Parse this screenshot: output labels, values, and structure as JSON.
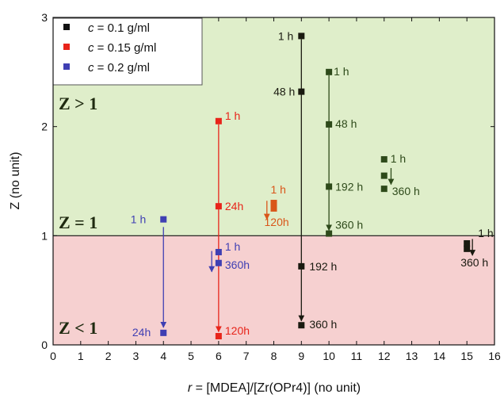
{
  "chart_data": {
    "type": "scatter",
    "xlabel": "r = [MDEA]/[Zr(OPr4)] (no unit)",
    "xlabel_italic": "r",
    "xlabel_rest": " = [MDEA]/[Zr(OPr4)] (no unit)",
    "ylabel": "Z (no unit)",
    "xlim": [
      0,
      16
    ],
    "ylim": [
      0,
      3
    ],
    "xticks": [
      "0",
      "1",
      "2",
      "3",
      "4",
      "5",
      "6",
      "7",
      "8",
      "9",
      "10",
      "11",
      "12",
      "13",
      "14",
      "15",
      "16"
    ],
    "yticks": [
      "0",
      "1",
      "2",
      "3"
    ],
    "threshold": 1.0,
    "regions": [
      {
        "label": "Z > 1",
        "color": "#dfeeca"
      },
      {
        "label": "Z = 1",
        "color": ""
      },
      {
        "label": "Z < 1",
        "color": "#f6d0d0"
      }
    ],
    "legend": [
      {
        "prefix": "c",
        "text": " = 0.1 g/ml",
        "color": "#111111"
      },
      {
        "prefix": "c",
        "text": " = 0.15 g/ml",
        "color": "#e8241a"
      },
      {
        "prefix": "c",
        "text": " = 0.2 g/ml",
        "color": "#3f3fb3"
      }
    ],
    "colors": {
      "black": "#1a1a10",
      "darkgreen": "#2e4a1a",
      "red": "#e8241a",
      "orange": "#d9561a",
      "blue": "#3f3fb3"
    },
    "series": [
      {
        "name": "c = 0.2 g/ml",
        "color_key": "blue",
        "points": [
          {
            "x": 4,
            "y": 1.15,
            "label": "1 h"
          },
          {
            "x": 4,
            "y": 0.11,
            "label": "24h"
          }
        ],
        "arrow": {
          "x": 4,
          "from": 1.08,
          "to": 0.16
        }
      },
      {
        "name": "c = 0.15 g/ml",
        "color_key": "red",
        "points": [
          {
            "x": 6,
            "y": 2.05,
            "label": "1 h"
          },
          {
            "x": 6,
            "y": 1.27,
            "label": "24h"
          },
          {
            "x": 6,
            "y": 0.08,
            "label": "120h"
          }
        ],
        "arrow": {
          "x": 6,
          "from": 2.02,
          "to": 0.12
        }
      },
      {
        "name": "c = 0.15 g/ml (r = 8)",
        "color_key": "orange",
        "points": [
          {
            "x": 8,
            "y": 1.3,
            "label": "1 h"
          },
          {
            "x": 8,
            "y": 1.25,
            "label": "120h"
          }
        ],
        "shortarrow": {
          "x": 7.75,
          "from": 1.32,
          "to": 1.15
        }
      },
      {
        "name": "c = 0.2 g/ml (r = 6)",
        "color_key": "blue",
        "points": [
          {
            "x": 6,
            "y": 0.85,
            "label": "1 h"
          },
          {
            "x": 6,
            "y": 0.75,
            "label": "360h"
          }
        ],
        "shortarrow": {
          "x": 5.75,
          "from": 0.86,
          "to": 0.67
        }
      },
      {
        "name": "c = 0.1 g/ml (r = 9)",
        "color_key": "black",
        "points": [
          {
            "x": 9,
            "y": 2.83,
            "label": "1 h"
          },
          {
            "x": 9,
            "y": 2.32,
            "label": "48 h"
          },
          {
            "x": 9,
            "y": 0.72,
            "label": "192 h"
          },
          {
            "x": 9,
            "y": 0.18,
            "label": "360 h"
          }
        ],
        "arrow": {
          "x": 9,
          "from": 2.8,
          "to": 0.22
        }
      },
      {
        "name": "c = 0.1 g/ml (r = 10)",
        "color_key": "darkgreen",
        "points": [
          {
            "x": 10,
            "y": 2.5,
            "label": "1 h"
          },
          {
            "x": 10,
            "y": 2.02,
            "label": "48 h"
          },
          {
            "x": 10,
            "y": 1.45,
            "label": "192 h"
          },
          {
            "x": 10,
            "y": 1.02,
            "label": "360 h"
          }
        ],
        "arrow": {
          "x": 10,
          "from": 2.47,
          "to": 1.05
        }
      },
      {
        "name": "c = 0.1 g/ml (r = 12)",
        "color_key": "darkgreen",
        "points": [
          {
            "x": 12,
            "y": 1.7,
            "label": "1 h"
          },
          {
            "x": 12,
            "y": 1.55,
            "label": ""
          },
          {
            "x": 12,
            "y": 1.43,
            "label": "360 h"
          }
        ],
        "shortarrow": {
          "x": 12.25,
          "from": 1.62,
          "to": 1.47
        }
      },
      {
        "name": "c = 0.1 g/ml (r = 15)",
        "color_key": "black",
        "points": [
          {
            "x": 15,
            "y": 0.93,
            "label": "1 h"
          },
          {
            "x": 15,
            "y": 0.88,
            "label": "360 h"
          }
        ],
        "shortarrow": {
          "x": 15.2,
          "from": 0.97,
          "to": 0.82
        }
      }
    ]
  }
}
